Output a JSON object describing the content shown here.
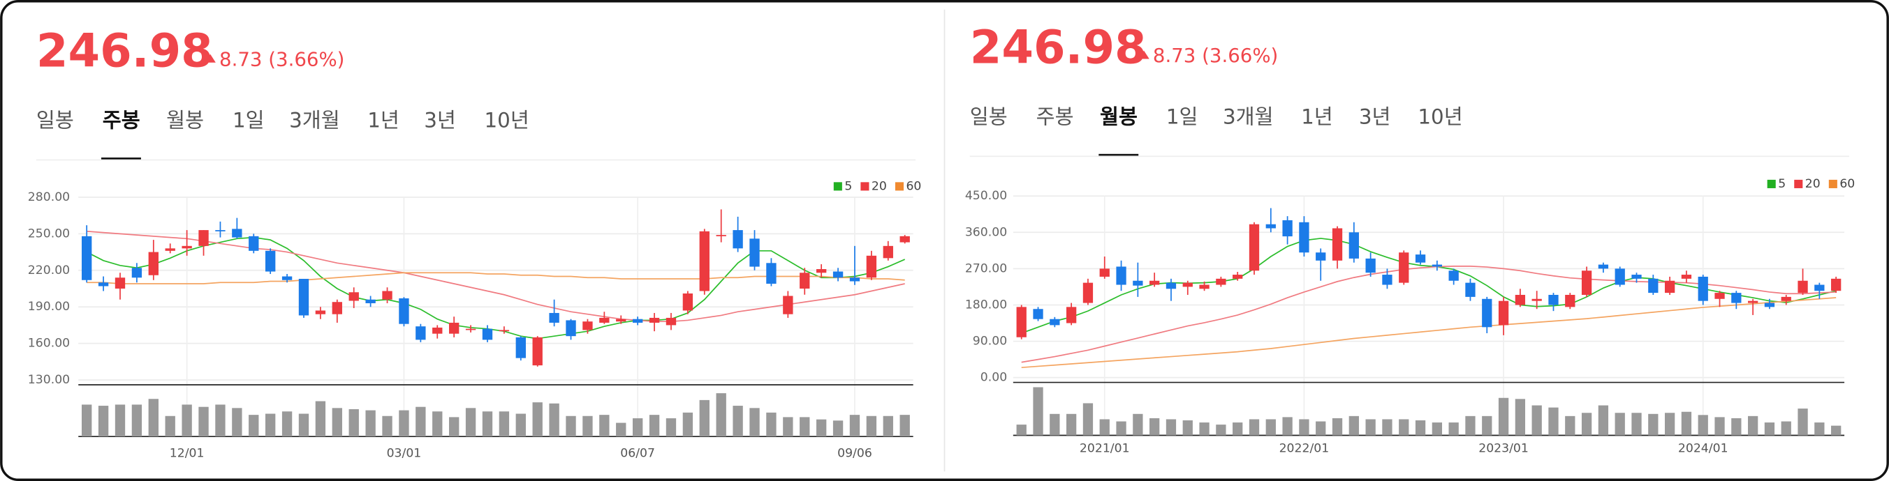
{
  "panels": [
    {
      "price": "246.98",
      "change": "8.73 (3.66%)",
      "tabs": [
        "일봉",
        "주봉",
        "월봉",
        "1일",
        "3개월",
        "1년",
        "3년",
        "10년"
      ],
      "active_tab": 1
    },
    {
      "price": "246.98",
      "change": "8.73 (3.66%)",
      "tabs": [
        "일봉",
        "주봉",
        "월봉",
        "1일",
        "3개월",
        "1년",
        "3년",
        "10년"
      ],
      "active_tab": 2
    }
  ],
  "chart_data": [
    {
      "type": "candlestick",
      "categories": [
        null,
        null,
        null,
        null,
        null,
        null,
        "12/01",
        null,
        null,
        null,
        null,
        null,
        null,
        null,
        null,
        null,
        null,
        null,
        null,
        "03/01",
        null,
        null,
        null,
        null,
        null,
        null,
        null,
        null,
        null,
        null,
        null,
        null,
        null,
        "06/07",
        null,
        null,
        null,
        null,
        null,
        null,
        null,
        null,
        null,
        null,
        null,
        null,
        "09/06",
        null,
        null,
        null
      ],
      "open": [
        248,
        210,
        205,
        222,
        216,
        236,
        238,
        240,
        253,
        254,
        248,
        236,
        215,
        213,
        184,
        184,
        195,
        196,
        196,
        197,
        174,
        168,
        168,
        171,
        172,
        170,
        165,
        142,
        185,
        179,
        171,
        177,
        178,
        180,
        177,
        175,
        187,
        203,
        248,
        253,
        246,
        226,
        184,
        205,
        218,
        219,
        214,
        214,
        230,
        243
      ],
      "high": [
        257,
        215,
        218,
        226,
        245,
        242,
        253,
        253,
        260,
        263,
        250,
        238,
        217,
        213,
        190,
        196,
        206,
        199,
        206,
        198,
        176,
        175,
        182,
        175,
        175,
        174,
        166,
        166,
        196,
        180,
        180,
        186,
        183,
        182,
        185,
        185,
        203,
        254,
        270,
        264,
        253,
        230,
        203,
        222,
        225,
        222,
        240,
        236,
        244,
        249
      ],
      "low": [
        210,
        203,
        196,
        210,
        212,
        234,
        232,
        232,
        247,
        246,
        234,
        217,
        210,
        181,
        180,
        177,
        189,
        190,
        193,
        174,
        161,
        164,
        165,
        169,
        161,
        168,
        146,
        141,
        174,
        163,
        168,
        176,
        176,
        175,
        170,
        171,
        184,
        200,
        243,
        235,
        220,
        207,
        181,
        200,
        214,
        211,
        208,
        212,
        228,
        242
      ],
      "close": [
        212,
        207,
        214,
        214,
        235,
        238,
        240,
        253,
        252,
        247,
        236,
        219,
        212,
        183,
        187,
        194,
        202,
        193,
        203,
        176,
        163,
        173,
        177,
        172,
        163,
        171,
        148,
        165,
        177,
        166,
        178,
        181,
        180,
        177,
        181,
        181,
        201,
        252,
        249,
        238,
        223,
        209,
        199,
        218,
        221,
        214,
        211,
        232,
        240,
        248
      ],
      "volume": [
        28,
        27,
        28,
        28,
        33,
        18,
        28,
        26,
        28,
        25,
        19,
        20,
        22,
        20,
        31,
        25,
        24,
        23,
        18,
        23,
        26,
        22,
        17,
        25,
        22,
        22,
        20,
        30,
        29,
        18,
        18,
        19,
        12,
        16,
        19,
        16,
        21,
        32,
        38,
        27,
        25,
        21,
        17,
        17,
        15,
        14,
        19,
        18,
        18,
        19
      ],
      "up_color": "#ec3a3f",
      "down_color": "#1b7be8",
      "volume_color": "#999999",
      "moving_averages": [
        {
          "name": "5",
          "color": "#2bbd2b",
          "values": [
            235,
            228,
            224,
            222,
            225,
            230,
            236,
            240,
            243,
            246,
            247,
            245,
            238,
            228,
            215,
            205,
            198,
            195,
            196,
            193,
            188,
            180,
            175,
            173,
            172,
            170,
            166,
            164,
            166,
            168,
            170,
            174,
            177,
            179,
            179,
            180,
            185,
            196,
            211,
            226,
            236,
            236,
            228,
            220,
            214,
            214,
            215,
            218,
            223,
            229
          ]
        },
        {
          "name": "20",
          "color": "#f07a80",
          "values": [
            252,
            251,
            250,
            249,
            248,
            247,
            246,
            244,
            242,
            240,
            238,
            237,
            235,
            232,
            229,
            226,
            224,
            222,
            220,
            218,
            215,
            212,
            209,
            206,
            203,
            200,
            196,
            192,
            189,
            186,
            184,
            182,
            180,
            179,
            178,
            178,
            179,
            181,
            183,
            186,
            188,
            190,
            192,
            194,
            196,
            198,
            200,
            203,
            206,
            209
          ]
        },
        {
          "name": "60",
          "color": "#f4a460",
          "values": [
            210,
            210,
            209,
            209,
            209,
            209,
            209,
            209,
            210,
            210,
            210,
            211,
            211,
            212,
            213,
            214,
            215,
            216,
            217,
            218,
            218,
            218,
            218,
            218,
            217,
            217,
            216,
            216,
            215,
            215,
            214,
            214,
            213,
            213,
            213,
            213,
            213,
            213,
            214,
            214,
            215,
            215,
            215,
            215,
            215,
            214,
            214,
            213,
            213,
            212
          ]
        }
      ],
      "legend_colors": [
        "#22b022",
        "#ec3a3f",
        "#f08a30"
      ],
      "ylim": [
        130,
        280
      ],
      "yticks": [
        {
          "value": 130,
          "label": "130.00"
        },
        {
          "value": 160,
          "label": "160.00"
        },
        {
          "value": 190,
          "label": "190.00"
        },
        {
          "value": 220,
          "label": "220.00"
        },
        {
          "value": 250,
          "label": "250.00"
        },
        {
          "value": 280,
          "label": "280.00"
        }
      ],
      "grid": true
    },
    {
      "type": "candlestick",
      "categories": [
        null,
        null,
        null,
        null,
        null,
        "2021/01",
        null,
        null,
        null,
        null,
        null,
        null,
        null,
        null,
        null,
        null,
        null,
        "2022/01",
        null,
        null,
        null,
        null,
        null,
        null,
        null,
        null,
        null,
        null,
        null,
        "2023/01",
        null,
        null,
        null,
        null,
        null,
        null,
        null,
        null,
        null,
        null,
        null,
        "2024/01",
        null,
        null,
        null,
        null,
        null,
        null,
        null,
        null
      ],
      "open": [
        100,
        170,
        145,
        135,
        185,
        250,
        275,
        240,
        230,
        235,
        225,
        220,
        230,
        245,
        265,
        380,
        390,
        385,
        310,
        290,
        360,
        295,
        255,
        235,
        305,
        280,
        265,
        235,
        195,
        130,
        180,
        190,
        205,
        175,
        205,
        280,
        270,
        255,
        245,
        210,
        245,
        250,
        195,
        210,
        185,
        185,
        190,
        210,
        230,
        215
      ],
      "high": [
        180,
        175,
        150,
        185,
        245,
        300,
        290,
        285,
        260,
        245,
        240,
        238,
        250,
        262,
        385,
        420,
        400,
        400,
        320,
        375,
        385,
        310,
        270,
        315,
        315,
        290,
        270,
        245,
        200,
        200,
        220,
        215,
        210,
        210,
        275,
        285,
        275,
        260,
        255,
        250,
        265,
        255,
        215,
        215,
        195,
        195,
        205,
        270,
        235,
        250
      ],
      "low": [
        95,
        140,
        125,
        130,
        180,
        245,
        215,
        200,
        225,
        190,
        205,
        215,
        225,
        240,
        255,
        360,
        330,
        300,
        240,
        270,
        285,
        250,
        220,
        230,
        280,
        265,
        230,
        190,
        110,
        105,
        175,
        170,
        165,
        170,
        200,
        260,
        225,
        235,
        205,
        205,
        235,
        180,
        175,
        170,
        155,
        170,
        180,
        205,
        195,
        210
      ],
      "close": [
        175,
        145,
        130,
        175,
        235,
        270,
        230,
        228,
        240,
        220,
        235,
        230,
        245,
        255,
        380,
        370,
        350,
        310,
        290,
        370,
        295,
        260,
        230,
        310,
        285,
        275,
        240,
        200,
        125,
        190,
        205,
        195,
        180,
        205,
        265,
        270,
        230,
        245,
        210,
        240,
        255,
        190,
        210,
        185,
        190,
        175,
        200,
        240,
        215,
        245
      ],
      "volume": [
        10,
        45,
        20,
        20,
        30,
        15,
        13,
        20,
        16,
        15,
        14,
        12,
        10,
        12,
        15,
        15,
        17,
        15,
        13,
        16,
        18,
        15,
        15,
        15,
        14,
        12,
        12,
        18,
        18,
        35,
        34,
        28,
        26,
        18,
        21,
        28,
        21,
        21,
        20,
        21,
        22,
        19,
        17,
        16,
        18,
        12,
        13,
        25,
        12,
        9
      ],
      "up_color": "#ec3a3f",
      "down_color": "#1b7be8",
      "volume_color": "#999999",
      "moving_averages": [
        {
          "name": "5",
          "color": "#2bbd2b",
          "values": [
            110,
            125,
            140,
            150,
            165,
            185,
            205,
            220,
            232,
            235,
            234,
            235,
            238,
            245,
            270,
            300,
            325,
            340,
            345,
            340,
            330,
            312,
            298,
            285,
            278,
            275,
            268,
            252,
            228,
            200,
            180,
            176,
            178,
            182,
            200,
            222,
            238,
            248,
            245,
            235,
            228,
            220,
            212,
            205,
            198,
            190,
            186,
            195,
            205,
            215
          ]
        },
        {
          "name": "20",
          "color": "#f07a80",
          "values": [
            38,
            45,
            52,
            60,
            68,
            78,
            88,
            98,
            108,
            118,
            128,
            136,
            145,
            155,
            168,
            182,
            198,
            212,
            225,
            238,
            248,
            256,
            262,
            268,
            272,
            275,
            276,
            276,
            274,
            270,
            265,
            258,
            252,
            247,
            244,
            242,
            240,
            238,
            237,
            236,
            235,
            232,
            228,
            223,
            218,
            212,
            208,
            208,
            210,
            212
          ]
        },
        {
          "name": "60",
          "color": "#f4a460",
          "values": [
            25,
            28,
            31,
            34,
            37,
            40,
            43,
            46,
            49,
            52,
            55,
            58,
            61,
            64,
            68,
            72,
            77,
            82,
            87,
            92,
            97,
            101,
            105,
            109,
            113,
            117,
            121,
            125,
            128,
            131,
            134,
            137,
            140,
            143,
            146,
            150,
            154,
            158,
            162,
            166,
            170,
            174,
            177,
            180,
            183,
            186,
            189,
            192,
            195,
            198
          ]
        }
      ],
      "legend_colors": [
        "#22b022",
        "#ec3a3f",
        "#f08a30"
      ],
      "ylim": [
        0,
        450
      ],
      "yticks": [
        {
          "value": 0,
          "label": "0.00"
        },
        {
          "value": 90,
          "label": "90.00"
        },
        {
          "value": 180,
          "label": "180.00"
        },
        {
          "value": 270,
          "label": "270.00"
        },
        {
          "value": 360,
          "label": "360.00"
        },
        {
          "value": 450,
          "label": "450.00"
        }
      ],
      "grid": true
    }
  ]
}
